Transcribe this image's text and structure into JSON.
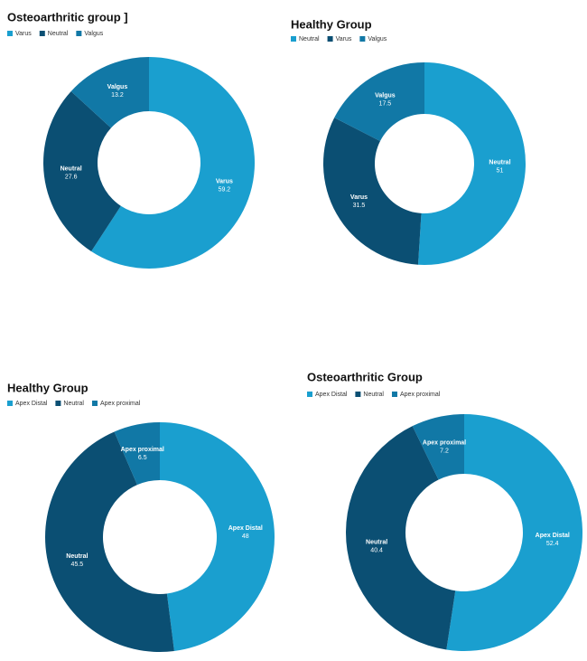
{
  "chart_data": [
    {
      "type": "donut",
      "title": "Osteoarthritic group ]",
      "categories": [
        "Varus",
        "Neutral",
        "Valgus"
      ],
      "values": [
        59.2,
        27.6,
        13.2
      ],
      "colors": [
        "#1a9fcf",
        "#0b4f73",
        "#1178a6"
      ],
      "legend": "top-left"
    },
    {
      "type": "donut",
      "title": "Healthy Group",
      "categories": [
        "Neutral",
        "Varus",
        "Valgus"
      ],
      "values": [
        51,
        31.5,
        17.5
      ],
      "colors": [
        "#1a9fcf",
        "#0b4f73",
        "#1178a6"
      ],
      "legend": "top-left"
    },
    {
      "type": "donut",
      "title": "Healthy Group",
      "categories": [
        "Apex Distal",
        "Neutral",
        "Apex proximal"
      ],
      "values": [
        48,
        45.5,
        6.5
      ],
      "colors": [
        "#1a9fcf",
        "#0b4f73",
        "#1178a6"
      ],
      "legend": "top-left"
    },
    {
      "type": "donut",
      "title": "Osteoarthritic Group",
      "categories": [
        "Apex Distal",
        "Neutral",
        "Apex proximal"
      ],
      "values": [
        52.4,
        40.4,
        7.2
      ],
      "colors": [
        "#1a9fcf",
        "#0b4f73",
        "#1178a6"
      ],
      "legend": "top-left"
    }
  ]
}
